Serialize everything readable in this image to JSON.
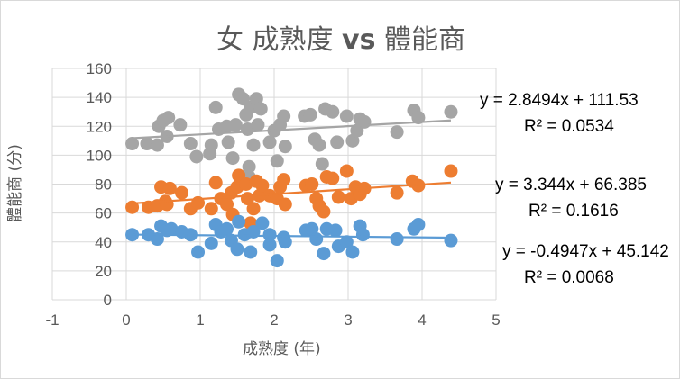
{
  "chart_data": {
    "type": "scatter",
    "title_prefix": "女 成熟度 ",
    "title_vs": "vs",
    "title_suffix": " 體能商",
    "xlabel": "成熟度 (年)",
    "ylabel": "體能商 (分)",
    "xlim": [
      -1,
      5
    ],
    "ylim": [
      0,
      160
    ],
    "xticks": [
      -1,
      0,
      1,
      2,
      3,
      4,
      5
    ],
    "yticks": [
      0,
      20,
      40,
      60,
      80,
      100,
      120,
      140,
      160
    ],
    "grid": true,
    "legend": "none",
    "series": [
      {
        "name": "gray",
        "color": "#A5A5A5",
        "trend": {
          "slope": 2.8494,
          "intercept": 111.53,
          "equation": "y = 2.8494x + 111.53",
          "r2": "R² = 0.0534"
        },
        "points": [
          [
            0.08,
            108
          ],
          [
            0.28,
            108
          ],
          [
            0.42,
            107
          ],
          [
            0.44,
            120
          ],
          [
            0.5,
            124
          ],
          [
            0.57,
            126
          ],
          [
            0.55,
            113
          ],
          [
            0.73,
            121
          ],
          [
            0.87,
            108
          ],
          [
            0.95,
            99
          ],
          [
            1.13,
            101
          ],
          [
            1.15,
            107
          ],
          [
            1.21,
            133
          ],
          [
            1.25,
            118
          ],
          [
            1.36,
            120
          ],
          [
            1.38,
            109
          ],
          [
            1.44,
            98
          ],
          [
            1.48,
            121
          ],
          [
            1.52,
            142
          ],
          [
            1.58,
            139
          ],
          [
            1.62,
            128
          ],
          [
            1.64,
            118
          ],
          [
            1.68,
            133
          ],
          [
            1.72,
            107
          ],
          [
            1.76,
            139
          ],
          [
            1.82,
            132
          ],
          [
            1.78,
            121
          ],
          [
            1.94,
            109
          ],
          [
            2.0,
            117
          ],
          [
            2.04,
            96
          ],
          [
            2.08,
            121
          ],
          [
            2.13,
            127
          ],
          [
            2.15,
            106
          ],
          [
            2.41,
            127
          ],
          [
            2.49,
            128
          ],
          [
            2.55,
            111
          ],
          [
            2.61,
            107
          ],
          [
            2.65,
            94
          ],
          [
            2.69,
            132
          ],
          [
            2.79,
            130
          ],
          [
            2.85,
            109
          ],
          [
            2.98,
            127
          ],
          [
            3.06,
            110
          ],
          [
            3.12,
            117
          ],
          [
            3.16,
            125
          ],
          [
            3.22,
            123
          ],
          [
            3.66,
            116
          ],
          [
            3.89,
            131
          ],
          [
            3.95,
            126
          ],
          [
            4.39,
            130
          ],
          [
            1.66,
            92
          ],
          [
            1.66,
            85
          ]
        ]
      },
      {
        "name": "orange",
        "color": "#ED7D31",
        "trend": {
          "slope": 3.344,
          "intercept": 66.385,
          "equation": "y = 3.344x + 66.385",
          "r2": "R² = 0.1616"
        },
        "points": [
          [
            0.08,
            64
          ],
          [
            0.3,
            64
          ],
          [
            0.42,
            65
          ],
          [
            0.47,
            78
          ],
          [
            0.53,
            68
          ],
          [
            0.59,
            77
          ],
          [
            0.55,
            66
          ],
          [
            0.75,
            74
          ],
          [
            0.87,
            63
          ],
          [
            0.97,
            67
          ],
          [
            1.15,
            63
          ],
          [
            1.21,
            81
          ],
          [
            1.28,
            70
          ],
          [
            1.36,
            66
          ],
          [
            1.44,
            59
          ],
          [
            1.42,
            74
          ],
          [
            1.5,
            78
          ],
          [
            1.52,
            86
          ],
          [
            1.62,
            80
          ],
          [
            1.64,
            70
          ],
          [
            1.68,
            53
          ],
          [
            1.72,
            63
          ],
          [
            1.76,
            82
          ],
          [
            1.8,
            72
          ],
          [
            1.84,
            79
          ],
          [
            1.94,
            72
          ],
          [
            2.04,
            70
          ],
          [
            2.08,
            78
          ],
          [
            2.13,
            83
          ],
          [
            2.15,
            66
          ],
          [
            2.43,
            79
          ],
          [
            2.51,
            80
          ],
          [
            2.57,
            70
          ],
          [
            2.61,
            65
          ],
          [
            2.67,
            61
          ],
          [
            2.71,
            85
          ],
          [
            2.79,
            84
          ],
          [
            2.87,
            71
          ],
          [
            2.98,
            89
          ],
          [
            3.04,
            70
          ],
          [
            3.1,
            78
          ],
          [
            3.16,
            73
          ],
          [
            3.22,
            77
          ],
          [
            3.66,
            74
          ],
          [
            3.87,
            82
          ],
          [
            3.95,
            79
          ],
          [
            4.39,
            89
          ]
        ]
      },
      {
        "name": "blue",
        "color": "#5B9BD5",
        "trend": {
          "slope": -0.4947,
          "intercept": 45.142,
          "equation": "y = -0.4947x + 45.142",
          "r2": "R² = 0.0068"
        },
        "points": [
          [
            0.08,
            45
          ],
          [
            0.3,
            45
          ],
          [
            0.42,
            42
          ],
          [
            0.47,
            51
          ],
          [
            0.55,
            48
          ],
          [
            0.61,
            49
          ],
          [
            0.75,
            47
          ],
          [
            0.87,
            45
          ],
          [
            0.97,
            33
          ],
          [
            1.15,
            39
          ],
          [
            1.21,
            52
          ],
          [
            1.28,
            47
          ],
          [
            1.36,
            49
          ],
          [
            1.42,
            41
          ],
          [
            1.5,
            35
          ],
          [
            1.52,
            54
          ],
          [
            1.6,
            45
          ],
          [
            1.68,
            33
          ],
          [
            1.72,
            47
          ],
          [
            1.84,
            53
          ],
          [
            1.94,
            45
          ],
          [
            1.94,
            38
          ],
          [
            2.04,
            27
          ],
          [
            2.13,
            43
          ],
          [
            2.15,
            40
          ],
          [
            2.43,
            48
          ],
          [
            2.51,
            49
          ],
          [
            2.57,
            42
          ],
          [
            2.67,
            32
          ],
          [
            2.71,
            49
          ],
          [
            2.83,
            48
          ],
          [
            2.87,
            37
          ],
          [
            2.98,
            40
          ],
          [
            3.06,
            33
          ],
          [
            3.16,
            51
          ],
          [
            3.2,
            45
          ],
          [
            3.66,
            42
          ],
          [
            3.89,
            49
          ],
          [
            3.95,
            52
          ],
          [
            4.39,
            41
          ]
        ]
      }
    ]
  }
}
